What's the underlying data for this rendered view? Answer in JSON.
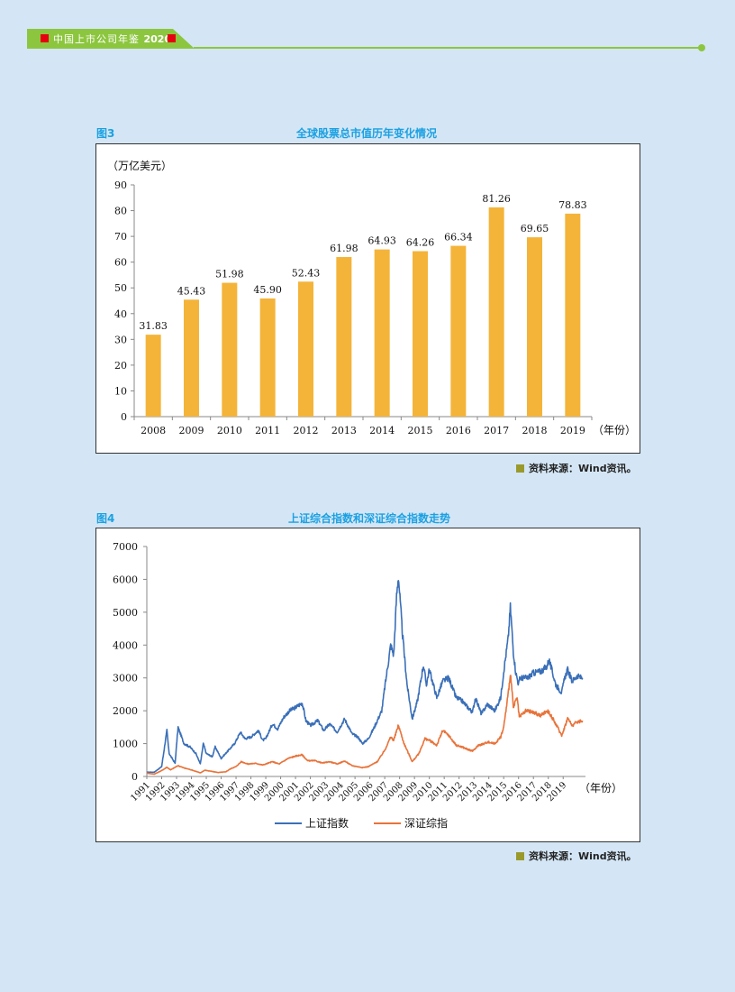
{
  "header": {
    "book_title": "中国上市公司年鉴",
    "year": "2020"
  },
  "figure3": {
    "label": "图3",
    "title": "全球股票总市值历年变化情况",
    "source": "资料来源：Wind资讯。"
  },
  "figure4": {
    "label": "图4",
    "title": "上证综合指数和深证综合指数走势",
    "source": "资料来源：Wind资讯。"
  },
  "chart_data": [
    {
      "type": "bar",
      "title": "全球股票总市值历年变化情况",
      "ylabel": "（万亿美元）",
      "xlabel": "（年份）",
      "ylim": [
        0,
        90
      ],
      "yticks": [
        0,
        10,
        20,
        30,
        40,
        50,
        60,
        70,
        80,
        90
      ],
      "categories": [
        "2008",
        "2009",
        "2010",
        "2011",
        "2012",
        "2013",
        "2014",
        "2015",
        "2016",
        "2017",
        "2018",
        "2019"
      ],
      "values": [
        31.83,
        45.43,
        51.98,
        45.9,
        52.43,
        61.98,
        64.93,
        64.26,
        66.34,
        81.26,
        69.65,
        78.83
      ],
      "labels": [
        "31.83",
        "45.43",
        "51.98",
        "45.90",
        "52.43",
        "61.98",
        "64.93",
        "64.26",
        "66.34",
        "81.26",
        "69.65",
        "78.83"
      ],
      "color": "#f4b43a"
    },
    {
      "type": "line",
      "title": "上证综合指数和深证综合指数走势",
      "xlabel": "（年份）",
      "ylim": [
        0,
        7000
      ],
      "yticks": [
        0,
        1000,
        2000,
        3000,
        4000,
        5000,
        6000,
        7000
      ],
      "xlim": [
        1991,
        2020.5
      ],
      "xticks": [
        "1991",
        "1992",
        "1993",
        "1994",
        "1995",
        "1996",
        "1997",
        "1998",
        "1999",
        "2000",
        "2001",
        "2002",
        "2003",
        "2004",
        "2005",
        "2006",
        "2007",
        "2008",
        "2009",
        "2010",
        "2011",
        "2012",
        "2013",
        "2014",
        "2015",
        "2016",
        "2017",
        "2018",
        "2019"
      ],
      "series": [
        {
          "name": "上证指数",
          "color": "#3a6fb8",
          "points": [
            [
              1991,
              130
            ],
            [
              1991.5,
              130
            ],
            [
              1992.0,
              300
            ],
            [
              1992.35,
              1400
            ],
            [
              1992.5,
              700
            ],
            [
              1992.9,
              400
            ],
            [
              1993.1,
              1500
            ],
            [
              1993.5,
              1000
            ],
            [
              1993.9,
              900
            ],
            [
              1994.3,
              700
            ],
            [
              1994.6,
              380
            ],
            [
              1994.8,
              1000
            ],
            [
              1995.0,
              700
            ],
            [
              1995.4,
              600
            ],
            [
              1995.6,
              900
            ],
            [
              1996.0,
              550
            ],
            [
              1996.5,
              800
            ],
            [
              1996.9,
              1000
            ],
            [
              1997.3,
              1350
            ],
            [
              1997.6,
              1150
            ],
            [
              1998.0,
              1200
            ],
            [
              1998.5,
              1400
            ],
            [
              1998.8,
              1100
            ],
            [
              1999.0,
              1150
            ],
            [
              1999.45,
              1600
            ],
            [
              1999.8,
              1450
            ],
            [
              2000.2,
              1800
            ],
            [
              2000.6,
              2000
            ],
            [
              2001.0,
              2100
            ],
            [
              2001.45,
              2240
            ],
            [
              2001.7,
              1700
            ],
            [
              2002.0,
              1550
            ],
            [
              2002.5,
              1700
            ],
            [
              2002.9,
              1400
            ],
            [
              2003.3,
              1600
            ],
            [
              2003.8,
              1350
            ],
            [
              2004.3,
              1750
            ],
            [
              2004.8,
              1300
            ],
            [
              2005.2,
              1200
            ],
            [
              2005.5,
              1000
            ],
            [
              2005.9,
              1150
            ],
            [
              2006.3,
              1500
            ],
            [
              2006.8,
              2000
            ],
            [
              2007.0,
              2700
            ],
            [
              2007.4,
              4000
            ],
            [
              2007.6,
              3700
            ],
            [
              2007.8,
              5500
            ],
            [
              2007.92,
              6100
            ],
            [
              2008.2,
              4300
            ],
            [
              2008.5,
              2800
            ],
            [
              2008.85,
              1750
            ],
            [
              2009.2,
              2300
            ],
            [
              2009.6,
              3400
            ],
            [
              2009.8,
              2800
            ],
            [
              2010.0,
              3250
            ],
            [
              2010.5,
              2400
            ],
            [
              2010.9,
              2900
            ],
            [
              2011.3,
              3000
            ],
            [
              2011.8,
              2400
            ],
            [
              2012.2,
              2300
            ],
            [
              2012.6,
              2100
            ],
            [
              2012.9,
              1950
            ],
            [
              2013.1,
              2400
            ],
            [
              2013.5,
              1900
            ],
            [
              2013.9,
              2200
            ],
            [
              2014.4,
              2000
            ],
            [
              2014.8,
              2400
            ],
            [
              2015.0,
              3200
            ],
            [
              2015.3,
              4200
            ],
            [
              2015.45,
              5160
            ],
            [
              2015.65,
              3800
            ],
            [
              2015.8,
              3200
            ],
            [
              2016.0,
              2800
            ],
            [
              2016.1,
              3000
            ],
            [
              2016.6,
              3000
            ],
            [
              2017.0,
              3150
            ],
            [
              2017.5,
              3200
            ],
            [
              2017.9,
              3350
            ],
            [
              2018.05,
              3550
            ],
            [
              2018.5,
              2800
            ],
            [
              2018.9,
              2550
            ],
            [
              2019.1,
              3000
            ],
            [
              2019.3,
              3250
            ],
            [
              2019.6,
              2900
            ],
            [
              2019.9,
              3050
            ],
            [
              2020.3,
              3000
            ]
          ]
        },
        {
          "name": "深证综指",
          "color": "#e8733a",
          "points": [
            [
              1991,
              100
            ],
            [
              1991.5,
              70
            ],
            [
              1992.0,
              180
            ],
            [
              1992.35,
              280
            ],
            [
              1992.6,
              200
            ],
            [
              1993.1,
              330
            ],
            [
              1993.5,
              260
            ],
            [
              1994.0,
              200
            ],
            [
              1994.6,
              110
            ],
            [
              1994.9,
              190
            ],
            [
              1995.3,
              160
            ],
            [
              1995.8,
              120
            ],
            [
              1996.3,
              140
            ],
            [
              1996.7,
              250
            ],
            [
              1997.0,
              300
            ],
            [
              1997.35,
              450
            ],
            [
              1997.8,
              380
            ],
            [
              1998.3,
              400
            ],
            [
              1998.8,
              350
            ],
            [
              1999.45,
              450
            ],
            [
              1999.9,
              380
            ],
            [
              2000.5,
              550
            ],
            [
              2001.0,
              620
            ],
            [
              2001.45,
              660
            ],
            [
              2001.8,
              480
            ],
            [
              2002.3,
              480
            ],
            [
              2002.8,
              410
            ],
            [
              2003.3,
              450
            ],
            [
              2003.8,
              380
            ],
            [
              2004.3,
              470
            ],
            [
              2004.8,
              330
            ],
            [
              2005.5,
              270
            ],
            [
              2005.9,
              300
            ],
            [
              2006.5,
              450
            ],
            [
              2007.0,
              800
            ],
            [
              2007.4,
              1200
            ],
            [
              2007.6,
              1100
            ],
            [
              2007.92,
              1560
            ],
            [
              2008.3,
              1000
            ],
            [
              2008.85,
              450
            ],
            [
              2009.3,
              700
            ],
            [
              2009.7,
              1150
            ],
            [
              2010.0,
              1100
            ],
            [
              2010.5,
              950
            ],
            [
              2010.9,
              1400
            ],
            [
              2011.3,
              1250
            ],
            [
              2011.8,
              950
            ],
            [
              2012.2,
              900
            ],
            [
              2012.7,
              800
            ],
            [
              2012.95,
              780
            ],
            [
              2013.3,
              950
            ],
            [
              2013.7,
              1000
            ],
            [
              2013.9,
              1050
            ],
            [
              2014.4,
              1000
            ],
            [
              2014.8,
              1200
            ],
            [
              2015.0,
              1500
            ],
            [
              2015.3,
              2500
            ],
            [
              2015.45,
              3160
            ],
            [
              2015.65,
              2100
            ],
            [
              2015.9,
              2400
            ],
            [
              2016.05,
              1800
            ],
            [
              2016.5,
              2000
            ],
            [
              2017.0,
              1950
            ],
            [
              2017.5,
              1850
            ],
            [
              2017.9,
              2000
            ],
            [
              2018.05,
              1950
            ],
            [
              2018.5,
              1600
            ],
            [
              2018.9,
              1250
            ],
            [
              2019.1,
              1500
            ],
            [
              2019.3,
              1780
            ],
            [
              2019.6,
              1550
            ],
            [
              2019.9,
              1650
            ],
            [
              2020.3,
              1700
            ]
          ]
        }
      ]
    }
  ]
}
